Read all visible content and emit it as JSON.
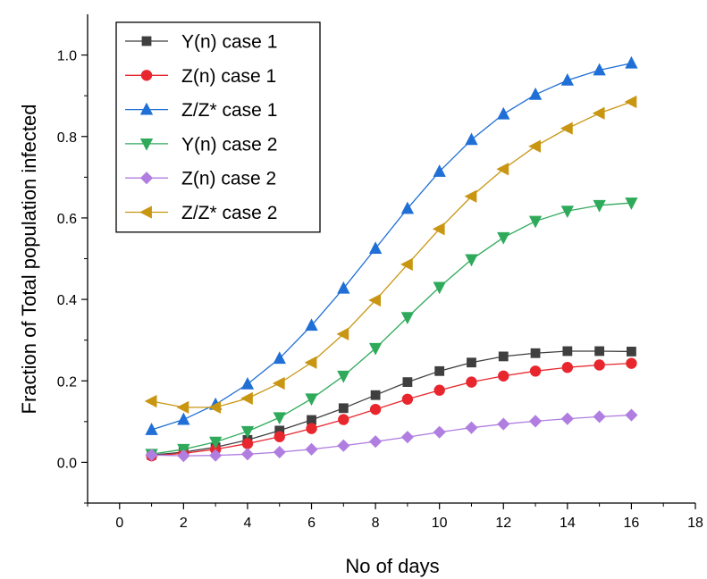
{
  "chart_data": {
    "type": "line",
    "xlabel": "No of days",
    "ylabel": "Fraction of Total population infected",
    "xlim": [
      -1,
      18
    ],
    "ylim": [
      -0.1,
      1.1
    ],
    "xticks": [
      "0",
      "2",
      "4",
      "6",
      "8",
      "10",
      "12",
      "14",
      "16",
      "18"
    ],
    "yticks": [
      "0.0",
      "0.2",
      "0.4",
      "0.6",
      "0.8",
      "1.0"
    ],
    "legend_position": "top-left",
    "grid": false,
    "x": [
      1,
      2,
      3,
      4,
      5,
      6,
      7,
      8,
      9,
      10,
      11,
      12,
      13,
      14,
      15,
      16
    ],
    "series": [
      {
        "name": "Y(n) case 1",
        "color": "#3f3f3f",
        "marker": "square",
        "values": [
          0.018,
          0.025,
          0.037,
          0.055,
          0.078,
          0.104,
          0.133,
          0.165,
          0.197,
          0.224,
          0.245,
          0.26,
          0.268,
          0.273,
          0.273,
          0.272
        ]
      },
      {
        "name": "Z(n) case 1",
        "color": "#e8262e",
        "marker": "circle",
        "values": [
          0.016,
          0.022,
          0.032,
          0.046,
          0.063,
          0.083,
          0.105,
          0.13,
          0.155,
          0.177,
          0.197,
          0.212,
          0.224,
          0.233,
          0.239,
          0.243
        ]
      },
      {
        "name": "Z/Z* case 1",
        "color": "#1f6fd6",
        "marker": "triangle-up",
        "values": [
          0.08,
          0.105,
          0.142,
          0.192,
          0.255,
          0.336,
          0.427,
          0.525,
          0.623,
          0.714,
          0.792,
          0.855,
          0.903,
          0.938,
          0.963,
          0.98
        ]
      },
      {
        "name": "Y(n) case 2",
        "color": "#2faa5b",
        "marker": "triangle-down",
        "values": [
          0.02,
          0.032,
          0.05,
          0.076,
          0.11,
          0.156,
          0.212,
          0.28,
          0.356,
          0.43,
          0.498,
          0.552,
          0.592,
          0.617,
          0.631,
          0.637
        ]
      },
      {
        "name": "Z(n) case 2",
        "color": "#b07ee0",
        "marker": "diamond",
        "values": [
          0.018,
          0.016,
          0.017,
          0.02,
          0.025,
          0.032,
          0.041,
          0.051,
          0.062,
          0.074,
          0.085,
          0.094,
          0.101,
          0.107,
          0.112,
          0.116
        ]
      },
      {
        "name": "Z/Z* case 2",
        "color": "#c99612",
        "marker": "triangle-left",
        "values": [
          0.15,
          0.135,
          0.135,
          0.157,
          0.194,
          0.245,
          0.315,
          0.398,
          0.486,
          0.573,
          0.653,
          0.72,
          0.776,
          0.82,
          0.857,
          0.885
        ]
      }
    ]
  }
}
